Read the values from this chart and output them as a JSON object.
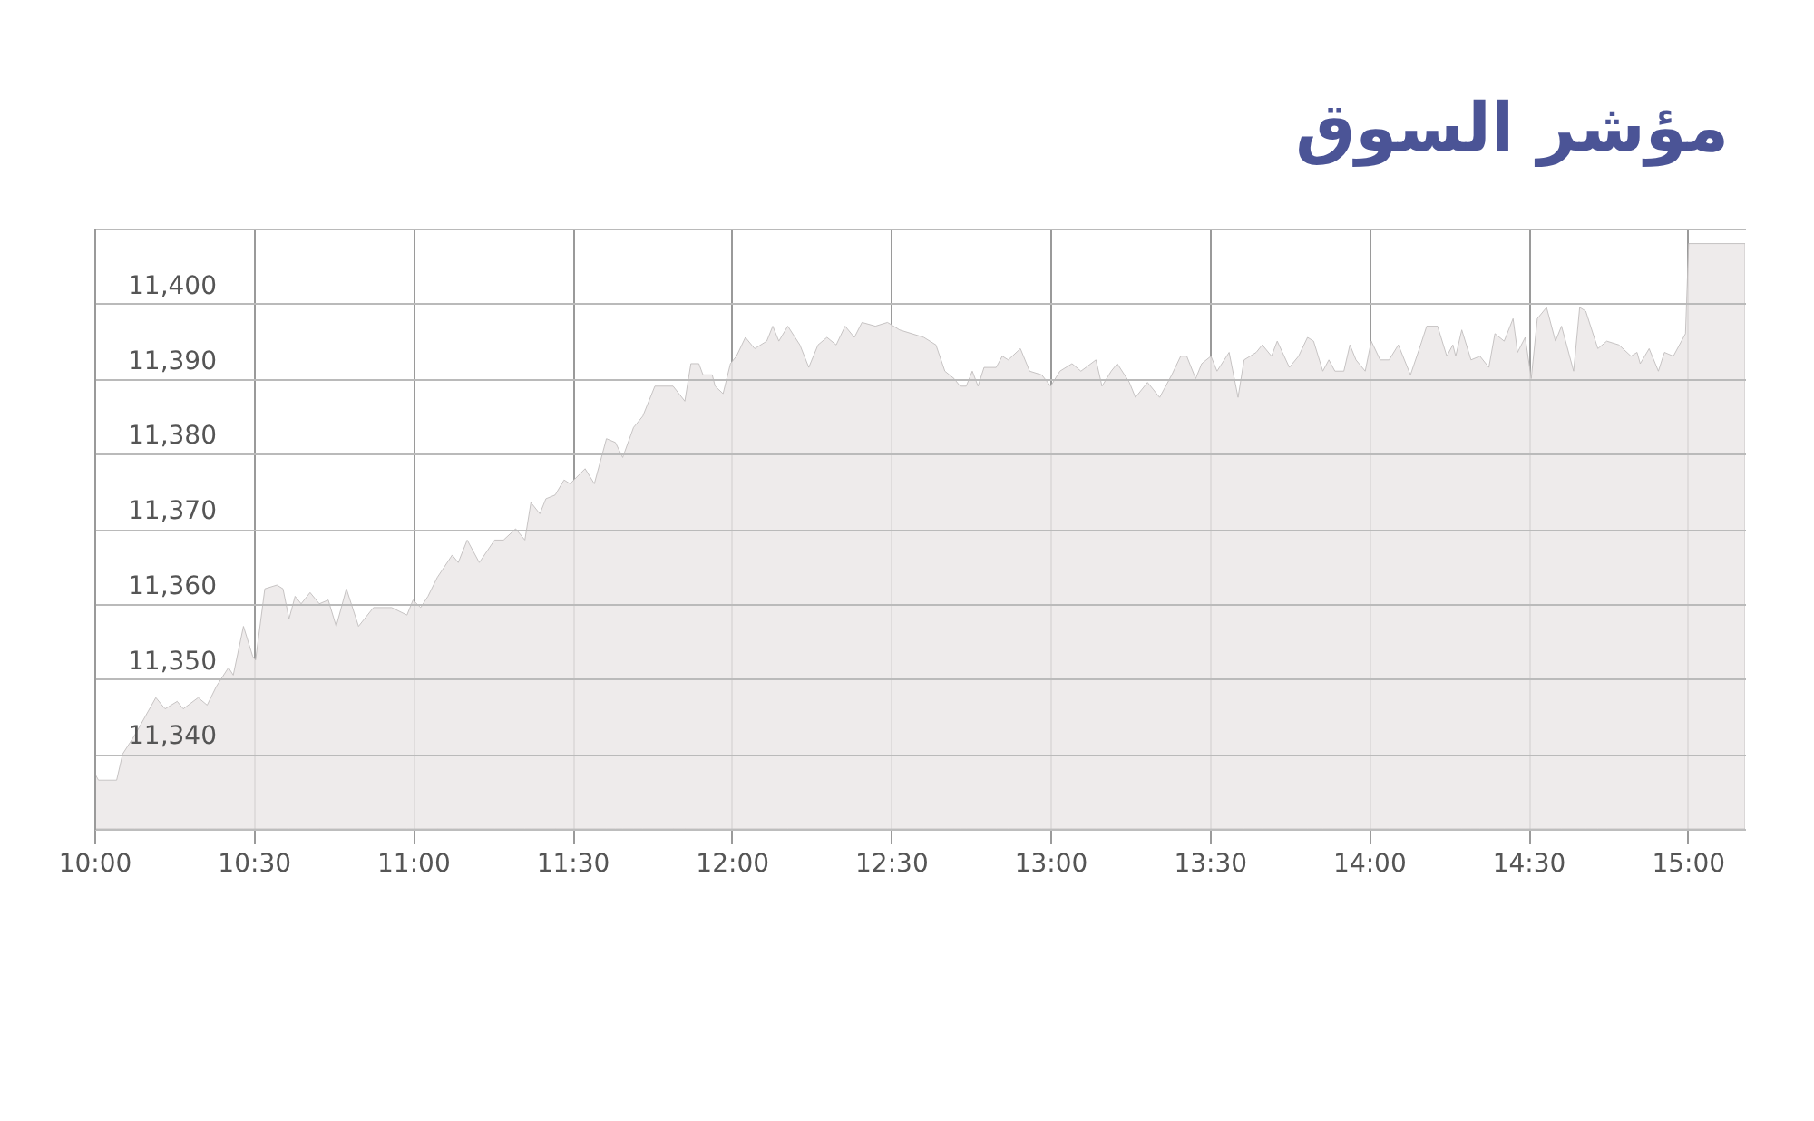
{
  "chart_data": {
    "type": "area",
    "title": "مؤشر السوق",
    "x": [
      10,
      10.013,
      10.07,
      10.089,
      10.127,
      10.193,
      10.222,
      10.26,
      10.279,
      10.326,
      10.354,
      10.383,
      10.421,
      10.436,
      10.468,
      10.497,
      10.506,
      10.535,
      10.573,
      10.592,
      10.611,
      10.63,
      10.649,
      10.677,
      10.706,
      10.734,
      10.759,
      10.791,
      10.829,
      10.876,
      10.933,
      10.981,
      11,
      11.024,
      11.047,
      11.076,
      11.123,
      11.142,
      11.17,
      11.208,
      11.256,
      11.284,
      11.322,
      11.351,
      11.37,
      11.398,
      11.417,
      11.446,
      11.474,
      11.493,
      11.54,
      11.569,
      11.607,
      11.635,
      11.658,
      11.692,
      11.721,
      11.759,
      11.816,
      11.853,
      11.872,
      11.897,
      11.91,
      11.939,
      11.948,
      11.973,
      11.996,
      12.015,
      12.043,
      12.072,
      12.11,
      12.129,
      12.148,
      12.176,
      12.214,
      12.242,
      12.271,
      12.299,
      12.328,
      12.356,
      12.385,
      12.409,
      12.451,
      12.489,
      12.527,
      12.565,
      12.603,
      12.641,
      12.669,
      12.698,
      12.717,
      12.736,
      12.755,
      12.773,
      12.792,
      12.83,
      12.849,
      12.868,
      12.906,
      12.935,
      12.973,
      13.001,
      13.03,
      13.068,
      13.096,
      13.143,
      13.162,
      13.191,
      13.21,
      13.248,
      13.267,
      13.305,
      13.324,
      13.343,
      13.381,
      13.409,
      13.428,
      13.456,
      13.475,
      13.504,
      13.523,
      13.561,
      13.589,
      13.608,
      13.646,
      13.665,
      13.694,
      13.712,
      13.75,
      13.779,
      13.807,
      13.826,
      13.855,
      13.874,
      13.893,
      13.921,
      13.94,
      13.959,
      13.988,
      14.007,
      14.035,
      14.063,
      14.092,
      14.13,
      14.158,
      14.181,
      14.215,
      14.244,
      14.263,
      14.272,
      14.291,
      14.32,
      14.348,
      14.376,
      14.395,
      14.424,
      14.452,
      14.466,
      14.49,
      14.509,
      14.528,
      14.557,
      14.585,
      14.604,
      14.642,
      14.661,
      14.68,
      14.718,
      14.746,
      14.784,
      14.822,
      14.841,
      14.851,
      14.879,
      14.908,
      14.927,
      14.955,
      14.993,
      15.003,
      15.18
    ],
    "values": [
      11337.5,
      11336.5,
      11336.5,
      11340,
      11342.5,
      11347.5,
      11346,
      11347,
      11346,
      11347.5,
      11346.5,
      11349,
      11351.5,
      11350.5,
      11357,
      11353,
      11352.5,
      11362,
      11362.5,
      11362,
      11358,
      11361,
      11360,
      11361.5,
      11360,
      11360.5,
      11357,
      11362,
      11357,
      11359.5,
      11359.5,
      11358.5,
      11360.5,
      11359.5,
      11361,
      11363.5,
      11366.5,
      11365.5,
      11368.5,
      11365.5,
      11368.5,
      11368.5,
      11370,
      11368.5,
      11373.5,
      11372,
      11374,
      11374.5,
      11376.5,
      11376,
      11378,
      11376,
      11382,
      11381.5,
      11379.5,
      11383.5,
      11385,
      11389,
      11389,
      11387,
      11392,
      11392,
      11390.5,
      11390.5,
      11389,
      11388,
      11392,
      11393,
      11395.5,
      11394,
      11395,
      11397,
      11395,
      11397,
      11394.5,
      11391.5,
      11394.5,
      11395.5,
      11394.5,
      11397,
      11395.5,
      11397.5,
      11397,
      11397.5,
      11396.5,
      11396,
      11395.5,
      11394.5,
      11391,
      11390,
      11389,
      11389,
      11391,
      11389,
      11391.5,
      11391.5,
      11393,
      11392.5,
      11394,
      11391,
      11390.5,
      11389,
      11391,
      11392,
      11391,
      11392.5,
      11389,
      11391,
      11392,
      11389.5,
      11387.5,
      11389.5,
      11388.5,
      11387.5,
      11390.5,
      11393,
      11393,
      11390,
      11392,
      11393,
      11391,
      11393.5,
      11387.5,
      11392.5,
      11393.5,
      11394.5,
      11393,
      11395,
      11391.5,
      11393,
      11395.5,
      11395,
      11391,
      11392.5,
      11391,
      11391,
      11394.5,
      11392.5,
      11391,
      11395,
      11392.5,
      11392.5,
      11394.5,
      11390.5,
      11394,
      11397,
      11397,
      11393,
      11394.5,
      11393,
      11396.5,
      11392.5,
      11393,
      11391.5,
      11396,
      11395,
      11398,
      11393.5,
      11395.5,
      11390,
      11398,
      11399.5,
      11395,
      11397,
      11391,
      11399.5,
      11399,
      11394,
      11395,
      11394.5,
      11393,
      11393.5,
      11392,
      11394,
      11391,
      11393.5,
      11393,
      11396,
      11408,
      11408
    ],
    "color": "#ebe7e7",
    "xlim": [
      10,
      15.18
    ],
    "xticks": [
      {
        "value": 10,
        "label": "10:00"
      },
      {
        "value": 10.5,
        "label": "10:30"
      },
      {
        "value": 11,
        "label": "11:00"
      },
      {
        "value": 11.5,
        "label": "11:30"
      },
      {
        "value": 12,
        "label": "12:00"
      },
      {
        "value": 12.5,
        "label": "12:30"
      },
      {
        "value": 13,
        "label": "13:00"
      },
      {
        "value": 13.5,
        "label": "13:30"
      },
      {
        "value": 14,
        "label": "14:00"
      },
      {
        "value": 14.5,
        "label": "14:30"
      },
      {
        "value": 15,
        "label": "15:00"
      }
    ],
    "ylim": [
      11330,
      11410
    ],
    "yticks": [
      {
        "value": 11340,
        "label": "11,340"
      },
      {
        "value": 11350,
        "label": "11,350"
      },
      {
        "value": 11360,
        "label": "11,360"
      },
      {
        "value": 11370,
        "label": "11,370"
      },
      {
        "value": 11380,
        "label": "11,380"
      },
      {
        "value": 11390,
        "label": "11,390"
      },
      {
        "value": 11400,
        "label": "11,400"
      },
      {
        "value": 11410,
        "label": null
      }
    ],
    "grid": true
  }
}
